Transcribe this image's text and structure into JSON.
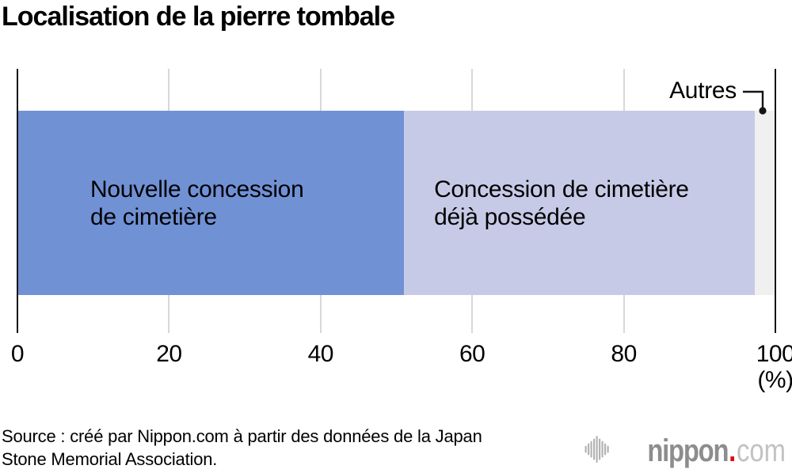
{
  "chart_data": {
    "type": "bar",
    "orientation": "horizontal",
    "stacked": true,
    "title": "Localisation de la pierre tombale",
    "xlabel": "",
    "unit_label": "(%)",
    "xlim": [
      0,
      100
    ],
    "xticks": [
      0,
      20,
      40,
      60,
      80,
      100
    ],
    "grid": true,
    "series": [
      {
        "name": "Nouvelle concession de cimetière",
        "value": 51,
        "color": "#7191d5"
      },
      {
        "name": "Concession de cimetière déjà possédée",
        "value": 46.3,
        "color": "#c7cae6"
      },
      {
        "name": "Autres",
        "value": 2.7,
        "color": "#f0f0f1"
      }
    ]
  },
  "footer": {
    "source_line1": "Source : créé par Nippon.com à partir des données de la Japan",
    "source_line2": "Stone Memorial Association.",
    "logo": {
      "icon": "soundwave-icon",
      "word1": "nippon",
      "dot": ".",
      "word2": "com",
      "brand_gray": "#8d8d8d",
      "light_gray": "#c2c2c2",
      "red": "#e60012"
    }
  },
  "colors": {
    "axis_line": "#141414",
    "gridline": "#d8d8d8",
    "text": "#000000"
  }
}
